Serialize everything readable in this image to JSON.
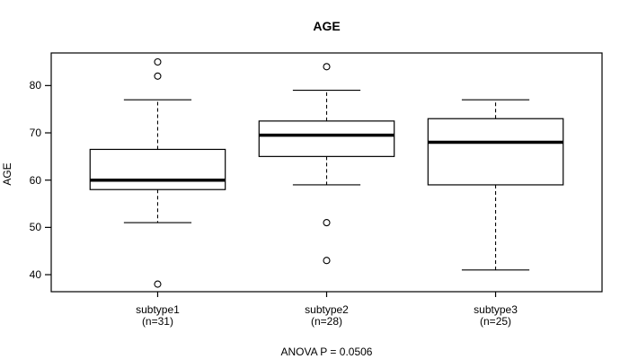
{
  "chart_data": {
    "type": "boxplot",
    "title": "AGE",
    "ylabel": "AGE",
    "xlabel": "",
    "annotation": "ANOVA P = 0.0506",
    "yticks": [
      40,
      50,
      60,
      70,
      80
    ],
    "ylim": [
      36.4,
      86.9
    ],
    "xlim": [
      0.37,
      3.63
    ],
    "box_width_units": 0.8,
    "grid": "off",
    "legend": "none",
    "colors": {
      "line": "#000000",
      "background": "#ffffff",
      "box_fill": "#ffffff"
    },
    "groups": [
      {
        "label": "subtype1",
        "n_label": "(n=31)",
        "n": 31,
        "position": 1,
        "stats": {
          "lower_whisker": 51,
          "q1": 58,
          "median": 60,
          "q3": 66.5,
          "upper_whisker": 77
        },
        "outliers": [
          85,
          82,
          38
        ]
      },
      {
        "label": "subtype2",
        "n_label": "(n=28)",
        "n": 28,
        "position": 2,
        "stats": {
          "lower_whisker": 59,
          "q1": 65,
          "median": 69.5,
          "q3": 72.5,
          "upper_whisker": 79
        },
        "outliers": [
          84,
          51,
          43
        ]
      },
      {
        "label": "subtype3",
        "n_label": "(n=25)",
        "n": 25,
        "position": 3,
        "stats": {
          "lower_whisker": 41,
          "q1": 59,
          "median": 68,
          "q3": 73,
          "upper_whisker": 77
        },
        "outliers": []
      }
    ]
  }
}
